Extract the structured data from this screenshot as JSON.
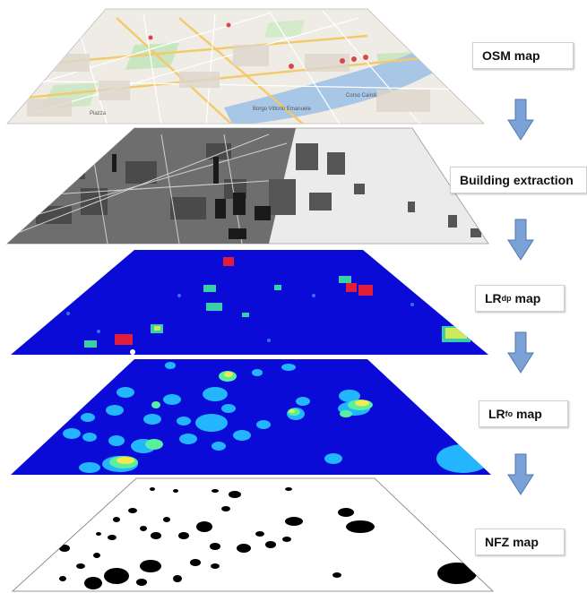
{
  "layers": [
    {
      "id": "osm",
      "label": "OSM map",
      "label_sub": "",
      "label_suffix": ""
    },
    {
      "id": "buildings",
      "label": "Building extraction",
      "label_sub": "",
      "label_suffix": ""
    },
    {
      "id": "lrdp",
      "label": "LR",
      "label_sub": "dp",
      "label_suffix": " map"
    },
    {
      "id": "lrfo",
      "label": "LR",
      "label_sub": "fo",
      "label_suffix": " map"
    },
    {
      "id": "nfz",
      "label": "NFZ map",
      "label_sub": "",
      "label_suffix": ""
    }
  ],
  "map_text": [
    "Borgo Vittorio Emanuele",
    "Corso Cairoli",
    "Piazza"
  ],
  "colors": {
    "arrow": "#7ba2d6",
    "arrow_stroke": "#4f78ad",
    "heat_bg": "#0b0bd8",
    "osm_bg": "#efece6",
    "river": "#a8c7e6"
  }
}
